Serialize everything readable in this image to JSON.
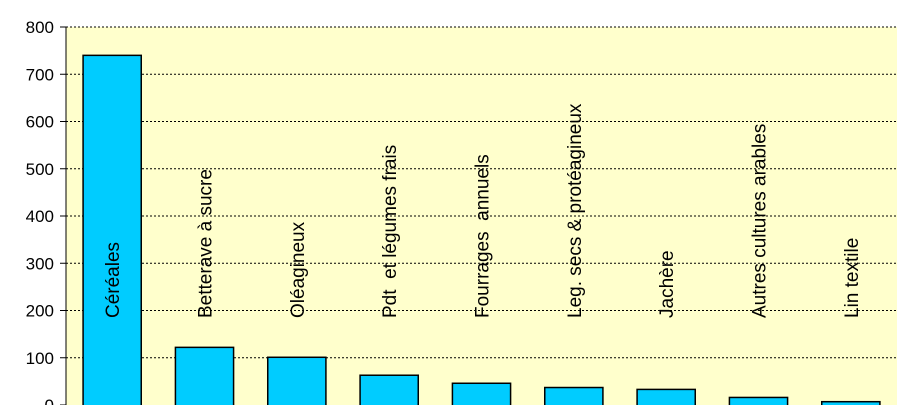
{
  "chart_data": {
    "type": "bar",
    "title": "",
    "xlabel": "",
    "ylabel": "",
    "ylim": [
      0,
      800
    ],
    "yticks": [
      0,
      100,
      200,
      300,
      400,
      500,
      600,
      700,
      800
    ],
    "ytick_labels": [
      "0",
      "100",
      "200",
      "300",
      "400",
      "500",
      "600",
      "700",
      "800"
    ],
    "grid": "horizontal dotted",
    "categories": [
      "Céréales",
      "Betterave à sucre",
      "Oléagineux",
      "Pdt  et légumes frais",
      "Fourrages  annuels",
      "Leg. secs & protéagineux",
      "Jachère",
      "Autres cultures arables",
      "Lin textile"
    ],
    "values": [
      740,
      122,
      101,
      63,
      46,
      37,
      33,
      16,
      7
    ],
    "colors": {
      "bar_fill": "#00CCFF",
      "bar_stroke": "#000000",
      "plot_background": "#FFFFCC",
      "grid": "#000000"
    }
  }
}
